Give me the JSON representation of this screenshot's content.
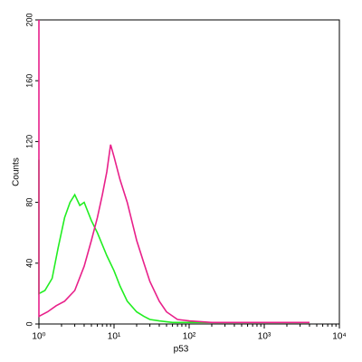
{
  "chart_data": {
    "type": "line",
    "xlabel": "p53",
    "ylabel": "Counts",
    "xscale": "log",
    "xlim": [
      1,
      10000
    ],
    "xticks": [
      {
        "value": 1,
        "label": "10⁰"
      },
      {
        "value": 10,
        "label": "10¹"
      },
      {
        "value": 100,
        "label": "10²"
      },
      {
        "value": 1000,
        "label": "10³"
      },
      {
        "value": 10000,
        "label": "10⁴"
      }
    ],
    "ylim": [
      0,
      200
    ],
    "yticks": [
      0,
      40,
      80,
      120,
      160,
      200
    ],
    "series": [
      {
        "color": "#22ee22",
        "x": [
          1,
          1,
          1.2,
          1.5,
          1.8,
          2.2,
          2.6,
          3,
          3.5,
          4,
          5,
          6,
          7,
          8,
          10,
          12,
          15,
          20,
          25,
          30,
          40,
          60,
          100,
          1000,
          4000
        ],
        "values": [
          108,
          20,
          22,
          30,
          50,
          70,
          80,
          85,
          78,
          80,
          68,
          60,
          52,
          45,
          35,
          25,
          15,
          8,
          5,
          3,
          2,
          1,
          1,
          1,
          1
        ]
      },
      {
        "color": "#e8208a",
        "x": [
          1,
          1,
          1.3,
          1.7,
          2.2,
          3,
          4,
          5,
          6,
          7,
          8,
          9,
          10,
          12,
          15,
          20,
          25,
          30,
          40,
          50,
          70,
          100,
          200,
          1000,
          4000
        ],
        "values": [
          200,
          5,
          8,
          12,
          15,
          22,
          38,
          55,
          70,
          85,
          100,
          118,
          110,
          95,
          80,
          55,
          40,
          28,
          15,
          8,
          3,
          2,
          1,
          1,
          1
        ]
      }
    ]
  }
}
